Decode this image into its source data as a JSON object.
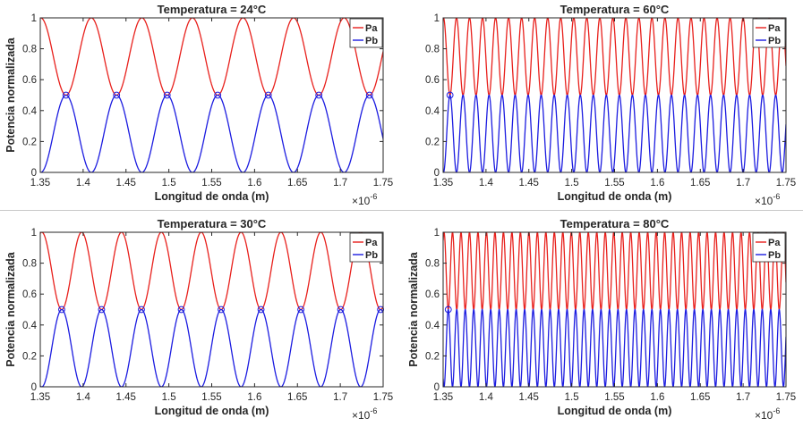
{
  "figure": {
    "x_exponent_base": "×10",
    "x_exponent_power": "-6"
  },
  "chart_data": [
    {
      "type": "line",
      "title": "Temperatura = 24°C",
      "xlabel": "Longitud de onda (m)",
      "ylabel": "Potencia normalizada",
      "xlim": [
        1.35e-06,
        1.75e-06
      ],
      "ylim": [
        0,
        1
      ],
      "x_tick_labels": [
        "1.35",
        "1.4",
        "1.45",
        "1.5",
        "1.55",
        "1.6",
        "1.65",
        "1.7",
        "1.75"
      ],
      "y_tick_labels": [
        "0",
        "0.2",
        "0.4",
        "0.6",
        "0.8",
        "1"
      ],
      "legend": "top-right",
      "grid": false,
      "period_m": 5.9e-08,
      "pb_peak_x_m": [
        1.38e-06,
        1.439e-06,
        1.498e-06,
        1.557e-06,
        1.616e-06,
        1.675e-06,
        1.734e-06
      ],
      "series": [
        {
          "name": "Pa",
          "color": "#e8201c",
          "min": 0.5,
          "max": 1.0
        },
        {
          "name": "Pb",
          "color": "#1c1ce0",
          "min": 0.0,
          "max": 0.5
        }
      ]
    },
    {
      "type": "line",
      "title": "Temperatura = 60°C",
      "xlabel": "Longitud de onda (m)",
      "ylabel": "",
      "xlim": [
        1.35e-06,
        1.75e-06
      ],
      "ylim": [
        0,
        1
      ],
      "x_tick_labels": [
        "1.35",
        "1.4",
        "1.45",
        "1.5",
        "1.55",
        "1.6",
        "1.65",
        "1.7",
        "1.75"
      ],
      "y_tick_labels": [
        "0",
        "0.2",
        "0.4",
        "0.6",
        "0.8",
        "1"
      ],
      "legend": "top-right",
      "grid": false,
      "period_m": 1.52e-08,
      "pb_peak_x_m": [
        1.358e-06
      ],
      "series": [
        {
          "name": "Pa",
          "color": "#e8201c",
          "min": 0.5,
          "max": 1.0
        },
        {
          "name": "Pb",
          "color": "#1c1ce0",
          "min": 0.0,
          "max": 0.5
        }
      ]
    },
    {
      "type": "line",
      "title": "Temperatura = 30°C",
      "xlabel": "Longitud de onda (m)",
      "ylabel": "Potencia normalizada",
      "xlim": [
        1.35e-06,
        1.75e-06
      ],
      "ylim": [
        0,
        1
      ],
      "x_tick_labels": [
        "1.35",
        "1.4",
        "1.45",
        "1.5",
        "1.55",
        "1.6",
        "1.65",
        "1.7",
        "1.75"
      ],
      "y_tick_labels": [
        "0",
        "0.2",
        "0.4",
        "0.6",
        "0.8",
        "1"
      ],
      "legend": "top-right",
      "grid": false,
      "period_m": 4.65e-08,
      "pb_peak_x_m": [
        1.375e-06,
        1.4215e-06,
        1.468e-06,
        1.5145e-06,
        1.561e-06,
        1.6075e-06,
        1.654e-06,
        1.7005e-06,
        1.747e-06
      ],
      "series": [
        {
          "name": "Pa",
          "color": "#e8201c",
          "min": 0.5,
          "max": 1.0
        },
        {
          "name": "Pb",
          "color": "#1c1ce0",
          "min": 0.0,
          "max": 0.5
        }
      ]
    },
    {
      "type": "line",
      "title": "Temperatura = 80°C",
      "xlabel": "Longitud de onda (m)",
      "ylabel": "Potencia normalizada",
      "xlim": [
        1.35e-06,
        1.75e-06
      ],
      "ylim": [
        0,
        1
      ],
      "x_tick_labels": [
        "1.35",
        "1.4",
        "1.45",
        "1.5",
        "1.55",
        "1.6",
        "1.65",
        "1.7",
        "1.75"
      ],
      "y_tick_labels": [
        "0",
        "0.2",
        "0.4",
        "0.6",
        "0.8",
        "1"
      ],
      "legend": "top-right",
      "grid": false,
      "period_m": 9.9e-09,
      "pb_peak_x_m": [
        1.356e-06
      ],
      "series": [
        {
          "name": "Pa",
          "color": "#e8201c",
          "min": 0.5,
          "max": 1.0
        },
        {
          "name": "Pb",
          "color": "#1c1ce0",
          "min": 0.0,
          "max": 0.5
        }
      ]
    }
  ]
}
